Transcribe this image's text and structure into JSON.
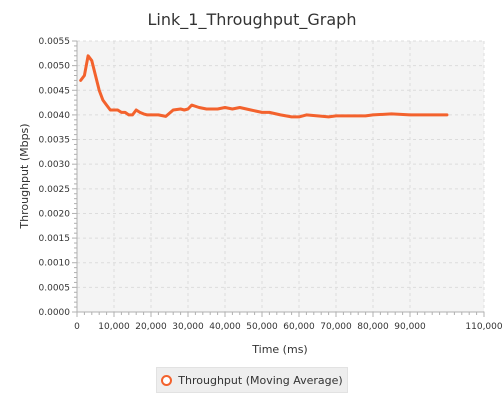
{
  "chart_data": {
    "type": "line",
    "title": "Link_1_Throughput_Graph",
    "xlabel": "Time (ms)",
    "ylabel": "Throughput (Mbps)",
    "xlim": [
      0,
      110000
    ],
    "ylim": [
      0,
      0.0055
    ],
    "x_ticks": [
      0,
      10000,
      20000,
      30000,
      40000,
      50000,
      60000,
      70000,
      80000,
      90000,
      110000
    ],
    "x_tick_labels": [
      "0",
      "10,000",
      "20,000",
      "30,000",
      "40,000",
      "50,000",
      "60,000",
      "70,000",
      "80,000",
      "90,000",
      "110,000"
    ],
    "y_ticks": [
      0,
      0.0005,
      0.001,
      0.0015,
      0.002,
      0.0025,
      0.003,
      0.0035,
      0.004,
      0.0045,
      0.005,
      0.0055
    ],
    "y_tick_labels": [
      "0.0000",
      "0.0005",
      "0.0010",
      "0.0015",
      "0.0020",
      "0.0025",
      "0.0030",
      "0.0035",
      "0.0040",
      "0.0045",
      "0.0050",
      "0.0055"
    ],
    "grid": true,
    "legend_position": "bottom",
    "series": [
      {
        "name": "Throughput (Moving Average)",
        "color": "#f3622d",
        "x": [
          1000,
          2000,
          3000,
          4000,
          5000,
          6000,
          7000,
          8000,
          9000,
          10000,
          11000,
          12000,
          13000,
          14000,
          15000,
          16000,
          17000,
          18000,
          19000,
          20000,
          22000,
          24000,
          26000,
          28000,
          29000,
          30000,
          31000,
          33000,
          35000,
          38000,
          40000,
          42000,
          44000,
          47000,
          50000,
          52000,
          55000,
          58000,
          60000,
          62000,
          65000,
          68000,
          70000,
          73000,
          76000,
          78000,
          80000,
          85000,
          90000,
          95000,
          100000
        ],
        "y": [
          0.0047,
          0.0048,
          0.0052,
          0.0051,
          0.0048,
          0.0045,
          0.0043,
          0.0042,
          0.0041,
          0.0041,
          0.0041,
          0.00405,
          0.00405,
          0.004,
          0.004,
          0.0041,
          0.00405,
          0.00402,
          0.004,
          0.004,
          0.004,
          0.00397,
          0.0041,
          0.00412,
          0.0041,
          0.00412,
          0.0042,
          0.00415,
          0.00412,
          0.00412,
          0.00415,
          0.00412,
          0.00415,
          0.0041,
          0.00405,
          0.00405,
          0.004,
          0.00396,
          0.00396,
          0.004,
          0.00398,
          0.00396,
          0.00398,
          0.00398,
          0.00398,
          0.00398,
          0.004,
          0.00402,
          0.004,
          0.004,
          0.004
        ]
      }
    ]
  }
}
